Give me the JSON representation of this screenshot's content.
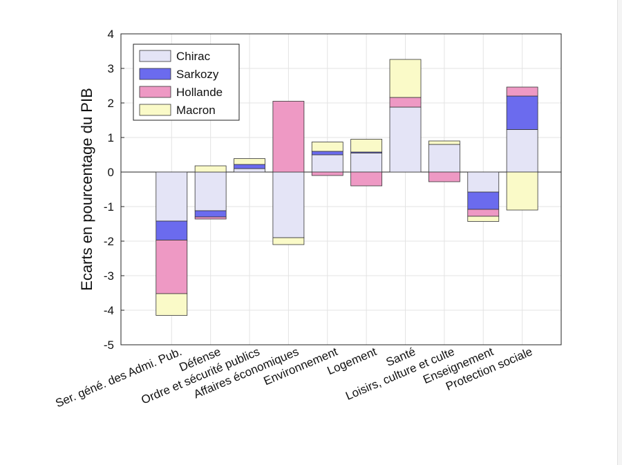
{
  "chart_data": {
    "type": "bar",
    "stacked": true,
    "title": "",
    "xlabel": "",
    "ylabel": "Ecarts en pourcentage du PIB",
    "ylim": [
      -5,
      4
    ],
    "yticks": [
      -5,
      -4,
      -3,
      -2,
      -1,
      0,
      1,
      2,
      3,
      4
    ],
    "grid": true,
    "legend_position": "top-left",
    "categories": [
      "Ser. géné. des Admi. Pub.",
      "Défense",
      "Ordre et sécurité publics",
      "Affaires économiques",
      "Environnement",
      "Logement",
      "Santé",
      "Loisirs, culture et culte",
      "Enseignement",
      "Protection sociale"
    ],
    "series": [
      {
        "name": "Chirac",
        "color": "#e4e4f6",
        "values": [
          -1.42,
          -1.12,
          0.1,
          -1.9,
          0.5,
          0.55,
          1.88,
          0.8,
          -0.58,
          1.23
        ]
      },
      {
        "name": "Sarkozy",
        "color": "#6b6bee",
        "values": [
          -0.55,
          -0.18,
          0.12,
          0.0,
          0.1,
          0.03,
          0.0,
          0.0,
          -0.5,
          0.97
        ]
      },
      {
        "name": "Hollande",
        "color": "#ee99c4",
        "values": [
          -1.55,
          -0.06,
          0.0,
          2.05,
          -0.1,
          -0.4,
          0.28,
          -0.28,
          -0.2,
          0.26
        ]
      },
      {
        "name": "Macron",
        "color": "#fafac8",
        "values": [
          -0.63,
          0.18,
          0.17,
          -0.2,
          0.27,
          0.37,
          1.1,
          0.1,
          -0.15,
          -1.1
        ]
      }
    ]
  }
}
